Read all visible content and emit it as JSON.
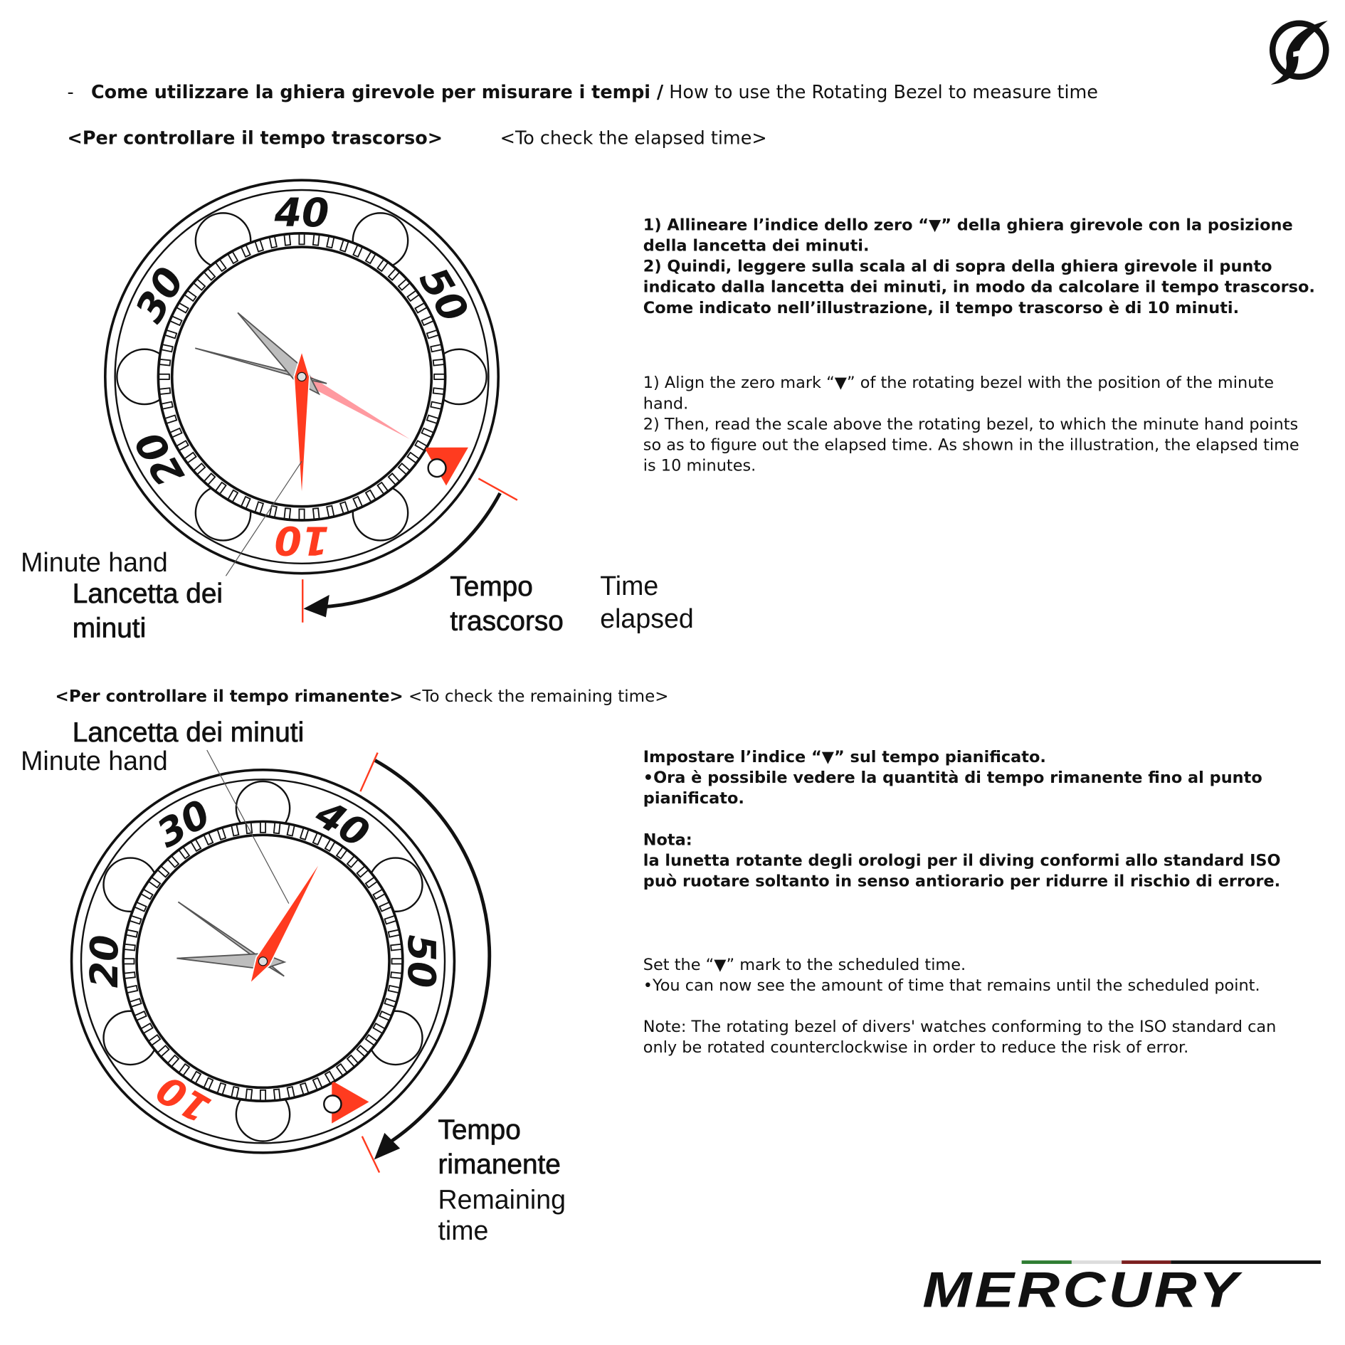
{
  "header": {
    "dash": "-",
    "title_it": "Come utilizzare la ghiera girevole per misurare i tempi /",
    "title_en": "How to use the Rotating Bezel to measure time"
  },
  "elapsed": {
    "heading_it": "<Per controllare il tempo trascorso>",
    "heading_en": "<To check the elapsed time>",
    "text_it": [
      "1) Allineare l’indice dello zero “▼” della ghiera girevole con la posizione della lancetta dei minuti.",
      "2) Quindi, leggere sulla scala al di sopra della ghiera girevole il punto indicato dalla lancetta dei minuti, in modo da calcolare il tempo trascorso. Come indicato nell’illustrazione, il tempo trascorso è di 10 minuti."
    ],
    "text_en": [
      "1) Align the zero mark “▼” of the rotating bezel with the position of the minute hand.",
      "2) Then, read the scale above the rotating bezel, to which the minute hand points so as to figure out the elapsed time. As shown in the illustration, the elapsed time is 10 minutes."
    ],
    "label_minute_en": "Minute hand",
    "label_minute_it": [
      "Lancetta dei",
      "minuti"
    ],
    "label_time_it": [
      "Tempo",
      "trascorso"
    ],
    "label_time_en": [
      "Time",
      "elapsed"
    ],
    "bezel_numbers": [
      "10",
      "20",
      "30",
      "40",
      "50"
    ]
  },
  "remaining": {
    "heading_it": "<Per controllare il tempo rimanente>",
    "heading_en": "<To check the remaining time>",
    "text_it": [
      "Impostare l’indice “▼” sul tempo pianificato.",
      "•Ora è possibile vedere la quantità di tempo rimanente fino al punto pianificato."
    ],
    "note_title_it": "Nota:",
    "note_it": "la lunetta rotante degli orologi per il diving conformi allo standard ISO può ruotare soltanto in senso antiorario per ridurre il rischio di errore.",
    "text_en": [
      "Set the “▼” mark to the scheduled time.",
      "•You can now see the amount of time that remains until the scheduled point."
    ],
    "note_en": "Note: The rotating bezel of divers' watches conforming to the ISO standard can only be rotated counterclockwise in order to reduce the risk of error.",
    "label_minute_it": "Lancetta dei minuti",
    "label_minute_en": "Minute hand",
    "label_time_it": [
      "Tempo",
      "rimanente"
    ],
    "label_time_en": [
      "Remaining",
      "time"
    ],
    "bezel_numbers": [
      "10",
      "20",
      "30",
      "40",
      "50"
    ]
  },
  "brand": {
    "name": "MERCURY",
    "logo_icon": "f-swoosh-logo",
    "stripe_colors": [
      "#2e7d32",
      "#ffffff",
      "#7b1e1e",
      "#111111"
    ]
  },
  "colors": {
    "accent": "#ff3b1f",
    "hand_gray": "#bdbdbd",
    "ink": "#111111"
  }
}
